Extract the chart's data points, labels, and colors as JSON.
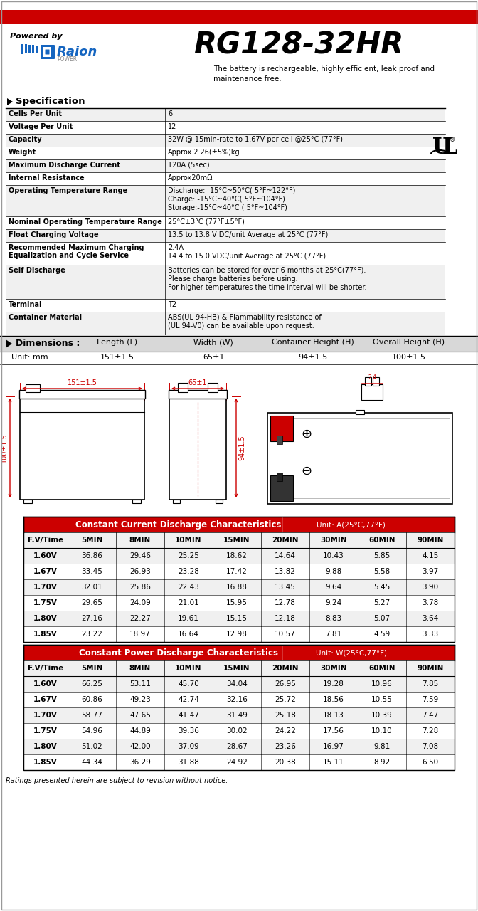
{
  "title": "RG128-32HR",
  "powered_by": "Powered by",
  "subtitle_line1": "The battery is rechargeable, highly efficient, leak proof and",
  "subtitle_line2": "maintenance free.",
  "spec_title": "Specification",
  "specs": [
    [
      "Cells Per Unit",
      "6"
    ],
    [
      "Voltage Per Unit",
      "12"
    ],
    [
      "Capacity",
      "32W @ 15min-rate to 1.67V per cell @25°C (77°F)"
    ],
    [
      "Weight",
      "Approx.2.26(±5%)kg"
    ],
    [
      "Maximum Discharge Current",
      "120A (5sec)"
    ],
    [
      "Internal Resistance",
      "Approx20mΩ"
    ],
    [
      "Operating Temperature Range",
      "Discharge: -15°C~50°C( 5°F~122°F)\nCharge: -15°C~40°C( 5°F~104°F)\nStorage:-15°C~40°C ( 5°F~104°F)"
    ],
    [
      "Nominal Operating Temperature Range",
      "25°C±3°C (77°F±5°F)"
    ],
    [
      "Float Charging Voltage",
      "13.5 to 13.8 V DC/unit Average at 25°C (77°F)"
    ],
    [
      "Recommended Maximum Charging\nEqualization and Cycle Service",
      "2.4A\n14.4 to 15.0 VDC/unit Average at 25°C (77°F)"
    ],
    [
      "Self Discharge",
      "Batteries can be stored for over 6 months at 25°C(77°F).\nPlease charge batteries before using.\nFor higher temperatures the time interval will be shorter."
    ],
    [
      "Terminal",
      "T2"
    ],
    [
      "Container Material",
      "ABS(UL 94-HB) & Flammability resistance of\n(UL 94-V0) can be available upon request."
    ]
  ],
  "spec_row_heights": [
    18,
    18,
    18,
    18,
    18,
    18,
    44,
    18,
    18,
    32,
    48,
    18,
    32
  ],
  "dim_title": "Dimensions :",
  "dim_headers": [
    "Length (L)",
    "Width (W)",
    "Container Height (H)",
    "Overall Height (H)"
  ],
  "dim_unit": "Unit: mm",
  "dim_values": [
    "151±1.5",
    "65±1",
    "94±1.5",
    "100±1.5"
  ],
  "cc_table_title": "Constant Current Discharge Characteristics",
  "cc_table_unit": "Unit: A(25°C,77°F)",
  "cc_headers": [
    "F.V/Time",
    "5MIN",
    "8MIN",
    "10MIN",
    "15MIN",
    "20MIN",
    "30MIN",
    "60MIN",
    "90MIN"
  ],
  "cc_data": [
    [
      "1.60V",
      "36.86",
      "29.46",
      "25.25",
      "18.62",
      "14.64",
      "10.43",
      "5.85",
      "4.15"
    ],
    [
      "1.67V",
      "33.45",
      "26.93",
      "23.28",
      "17.42",
      "13.82",
      "9.88",
      "5.58",
      "3.97"
    ],
    [
      "1.70V",
      "32.01",
      "25.86",
      "22.43",
      "16.88",
      "13.45",
      "9.64",
      "5.45",
      "3.90"
    ],
    [
      "1.75V",
      "29.65",
      "24.09",
      "21.01",
      "15.95",
      "12.78",
      "9.24",
      "5.27",
      "3.78"
    ],
    [
      "1.80V",
      "27.16",
      "22.27",
      "19.61",
      "15.15",
      "12.18",
      "8.83",
      "5.07",
      "3.64"
    ],
    [
      "1.85V",
      "23.22",
      "18.97",
      "16.64",
      "12.98",
      "10.57",
      "7.81",
      "4.59",
      "3.33"
    ]
  ],
  "cp_table_title": "Constant Power Discharge Characteristics",
  "cp_table_unit": "Unit: W(25°C,77°F)",
  "cp_headers": [
    "F.V/Time",
    "5MIN",
    "8MIN",
    "10MIN",
    "15MIN",
    "20MIN",
    "30MIN",
    "60MIN",
    "90MIN"
  ],
  "cp_data": [
    [
      "1.60V",
      "66.25",
      "53.11",
      "45.70",
      "34.04",
      "26.95",
      "19.28",
      "10.96",
      "7.85"
    ],
    [
      "1.67V",
      "60.86",
      "49.23",
      "42.74",
      "32.16",
      "25.72",
      "18.56",
      "10.55",
      "7.59"
    ],
    [
      "1.70V",
      "58.77",
      "47.65",
      "41.47",
      "31.49",
      "25.18",
      "18.13",
      "10.39",
      "7.47"
    ],
    [
      "1.75V",
      "54.96",
      "44.89",
      "39.36",
      "30.02",
      "24.22",
      "17.56",
      "10.10",
      "7.28"
    ],
    [
      "1.80V",
      "51.02",
      "42.00",
      "37.09",
      "28.67",
      "23.26",
      "16.97",
      "9.81",
      "7.08"
    ],
    [
      "1.85V",
      "44.34",
      "36.29",
      "31.88",
      "24.92",
      "20.38",
      "15.11",
      "8.92",
      "6.50"
    ]
  ],
  "footer": "Ratings presented herein are subject to revision without notice.",
  "red_color": "#CC0000",
  "blue_color": "#1565C0",
  "light_gray": "#F0F0F0",
  "mid_gray": "#D8D8D8"
}
